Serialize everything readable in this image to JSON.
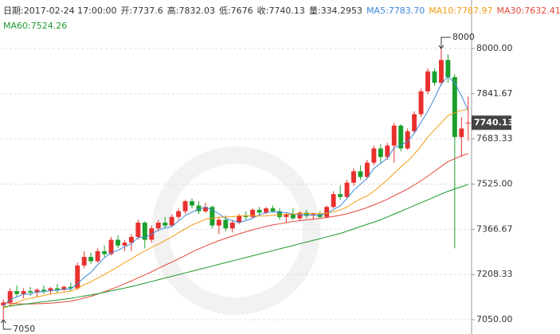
{
  "chart_data": {
    "type": "candlestick",
    "header": [
      "日期:2017-02-24 17:00:00",
      "开:7737.6",
      "高:7832.03",
      "低:7676",
      "收:7740.13",
      "量:334.2953"
    ],
    "up_color": "#e8312f",
    "down_color": "#1aa02c",
    "ylim": [
      7000,
      8170
    ],
    "yticks": [
      {
        "value": 7050,
        "label": "7050.00"
      },
      {
        "value": 7208.33,
        "label": "7208.33"
      },
      {
        "value": 7366.67,
        "label": "7366.67"
      },
      {
        "value": 7525,
        "label": "7525.00"
      },
      {
        "value": 7683.33,
        "label": "7683.33"
      },
      {
        "value": 7841.67,
        "label": "7841.67"
      },
      {
        "value": 8000,
        "label": "8000.00"
      }
    ],
    "grid": true,
    "max_label": "8000",
    "min_label": "7050",
    "last_label": "7740.13",
    "open": [
      7100,
      7110,
      7150,
      7140,
      7150,
      7145,
      7155,
      7150,
      7160,
      7155,
      7165,
      7160,
      7240,
      7270,
      7255,
      7290,
      7280,
      7330,
      7310,
      7320,
      7340,
      7390,
      7330,
      7370,
      7390,
      7380,
      7410,
      7430,
      7465,
      7450,
      7430,
      7445,
      7380,
      7400,
      7370,
      7390,
      7415,
      7410,
      7435,
      7425,
      7440,
      7430,
      7410,
      7420,
      7405,
      7425,
      7415,
      7420,
      7410,
      7445,
      7490,
      7480,
      7530,
      7570,
      7550,
      7600,
      7650,
      7620,
      7660,
      7730,
      7650,
      7710,
      7770,
      7850,
      7920,
      7880,
      7960,
      7900,
      7690,
      7737.6
    ],
    "high": [
      7120,
      7160,
      7170,
      7160,
      7165,
      7160,
      7170,
      7165,
      7175,
      7170,
      7180,
      7250,
      7290,
      7285,
      7300,
      7310,
      7340,
      7345,
      7330,
      7350,
      7400,
      7395,
      7380,
      7400,
      7410,
      7420,
      7440,
      7470,
      7475,
      7465,
      7460,
      7450,
      7410,
      7415,
      7400,
      7420,
      7430,
      7440,
      7445,
      7445,
      7450,
      7440,
      7425,
      7440,
      7430,
      7435,
      7425,
      7430,
      7450,
      7500,
      7520,
      7540,
      7580,
      7590,
      7610,
      7660,
      7665,
      7670,
      7740,
      7735,
      7720,
      7780,
      7860,
      7930,
      7930,
      8000,
      7980,
      7910,
      7760,
      7832.03
    ],
    "low": [
      7050,
      7100,
      7130,
      7125,
      7135,
      7130,
      7140,
      7140,
      7145,
      7150,
      7150,
      7155,
      7230,
      7245,
      7250,
      7270,
      7275,
      7300,
      7290,
      7290,
      7330,
      7300,
      7320,
      7360,
      7370,
      7375,
      7400,
      7420,
      7440,
      7420,
      7425,
      7370,
      7350,
      7360,
      7355,
      7385,
      7400,
      7405,
      7415,
      7420,
      7425,
      7400,
      7390,
      7400,
      7395,
      7405,
      7400,
      7405,
      7405,
      7440,
      7470,
      7475,
      7520,
      7540,
      7545,
      7590,
      7600,
      7610,
      7600,
      7640,
      7645,
      7700,
      7760,
      7840,
      7870,
      7870,
      7880,
      7300,
      7620,
      7676
    ],
    "close": [
      7110,
      7150,
      7140,
      7150,
      7145,
      7155,
      7150,
      7160,
      7155,
      7165,
      7160,
      7240,
      7270,
      7255,
      7290,
      7280,
      7330,
      7310,
      7320,
      7340,
      7390,
      7330,
      7370,
      7390,
      7380,
      7410,
      7430,
      7465,
      7450,
      7430,
      7445,
      7380,
      7400,
      7370,
      7390,
      7415,
      7410,
      7435,
      7425,
      7440,
      7430,
      7410,
      7420,
      7405,
      7425,
      7415,
      7420,
      7410,
      7445,
      7490,
      7480,
      7530,
      7570,
      7550,
      7600,
      7650,
      7620,
      7660,
      7730,
      7650,
      7710,
      7770,
      7850,
      7920,
      7880,
      7960,
      7900,
      7690,
      7720,
      7740.13
    ],
    "series": [
      {
        "name": "MA5:7783.70",
        "color": "#3d8ad8",
        "values": [
          7100,
          7120,
          7130,
          7140,
          7139,
          7148,
          7148,
          7152,
          7153,
          7157,
          7158,
          7176,
          7198,
          7216,
          7243,
          7267,
          7285,
          7293,
          7306,
          7316,
          7338,
          7338,
          7350,
          7364,
          7372,
          7376,
          7396,
          7415,
          7427,
          7437,
          7444,
          7434,
          7421,
          7405,
          7397,
          7391,
          7397,
          7406,
          7417,
          7425,
          7428,
          7427,
          7425,
          7420,
          7418,
          7415,
          7417,
          7415,
          7423,
          7436,
          7449,
          7475,
          7503,
          7524,
          7546,
          7580,
          7598,
          7616,
          7652,
          7662,
          7674,
          7704,
          7742,
          7780,
          7826,
          7876,
          7902,
          7880,
          7834,
          7784
        ]
      },
      {
        "name": "MA10:7787.97",
        "color": "#f39c12",
        "values": [
          7090,
          7100,
          7110,
          7120,
          7125,
          7130,
          7135,
          7140,
          7143,
          7147,
          7150,
          7160,
          7172,
          7183,
          7196,
          7208,
          7222,
          7236,
          7250,
          7263,
          7278,
          7291,
          7303,
          7315,
          7327,
          7340,
          7355,
          7368,
          7382,
          7392,
          7402,
          7405,
          7409,
          7410,
          7411,
          7414,
          7414,
          7415,
          7413,
          7414,
          7416,
          7418,
          7419,
          7420,
          7421,
          7422,
          7422,
          7421,
          7423,
          7428,
          7434,
          7445,
          7460,
          7473,
          7484,
          7500,
          7520,
          7540,
          7563,
          7585,
          7605,
          7630,
          7658,
          7690,
          7715,
          7740,
          7765,
          7775,
          7783,
          7788
        ]
      },
      {
        "name": "MA30:7632.41",
        "color": "#e4473a",
        "values": [
          7110,
          7108,
          7106,
          7105,
          7105,
          7106,
          7107,
          7108,
          7110,
          7112,
          7115,
          7120,
          7126,
          7132,
          7140,
          7148,
          7157,
          7166,
          7176,
          7186,
          7197,
          7207,
          7218,
          7230,
          7241,
          7252,
          7263,
          7275,
          7287,
          7298,
          7308,
          7318,
          7327,
          7335,
          7343,
          7351,
          7358,
          7365,
          7371,
          7377,
          7382,
          7386,
          7390,
          7394,
          7397,
          7400,
          7402,
          7405,
          7408,
          7412,
          7416,
          7421,
          7428,
          7435,
          7443,
          7452,
          7462,
          7472,
          7484,
          7496,
          7508,
          7522,
          7537,
          7553,
          7570,
          7587,
          7604,
          7614,
          7624,
          7632
        ]
      },
      {
        "name": "MA60:7524.26",
        "color": "#1d9a2d",
        "values": [
          7095,
          7098,
          7101,
          7104,
          7107,
          7110,
          7113,
          7116,
          7119,
          7122,
          7125,
          7129,
          7133,
          7137,
          7141,
          7146,
          7151,
          7156,
          7161,
          7166,
          7172,
          7178,
          7184,
          7190,
          7196,
          7202,
          7208,
          7214,
          7220,
          7226,
          7232,
          7238,
          7244,
          7250,
          7256,
          7262,
          7268,
          7274,
          7280,
          7286,
          7292,
          7298,
          7304,
          7310,
          7316,
          7322,
          7328,
          7334,
          7340,
          7346,
          7352,
          7360,
          7368,
          7376,
          7384,
          7392,
          7400,
          7410,
          7420,
          7430,
          7440,
          7450,
          7460,
          7470,
          7480,
          7490,
          7500,
          7508,
          7516,
          7524
        ]
      }
    ]
  }
}
